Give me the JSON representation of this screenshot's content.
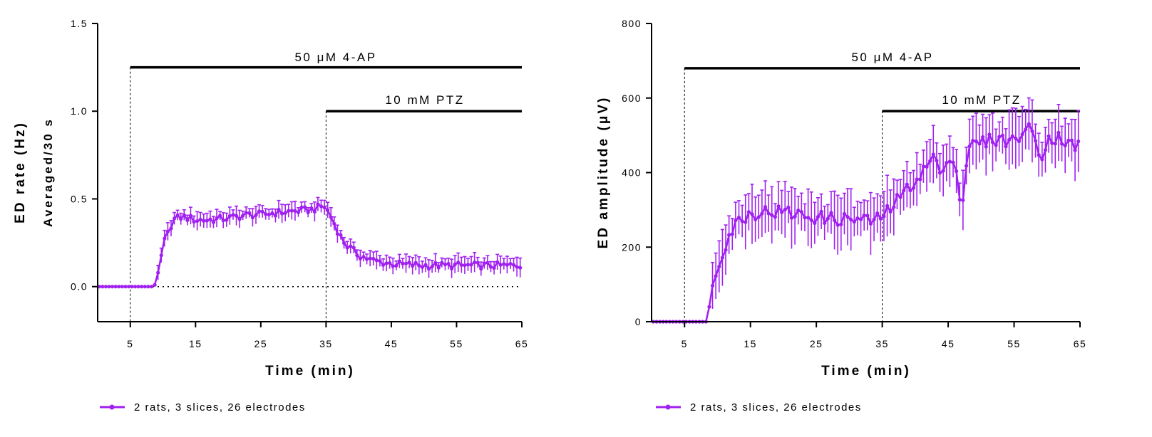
{
  "legend_label": "2 rats, 3 slices, 26 electrodes",
  "colors": {
    "series": "#A020F0",
    "axis": "#000000"
  },
  "chart_data": [
    {
      "type": "line",
      "title": "",
      "xlabel": "Time (min)",
      "ylabel": "ED rate (Hz)",
      "ylabel2": "Averaged/30 s",
      "xlim": [
        0,
        65
      ],
      "ylim": [
        -0.2,
        1.5
      ],
      "xticks": [
        5,
        15,
        25,
        35,
        45,
        55,
        65
      ],
      "xtick_labels": [
        "5",
        "15",
        "25",
        "35",
        "45",
        "55",
        "65"
      ],
      "yticks": [
        0.0,
        0.5,
        1.0,
        1.5
      ],
      "ytick_labels": [
        "0.0",
        "0.5",
        "1.0",
        "1.5"
      ],
      "baseline": 0,
      "treatments": [
        {
          "label": "50 μM 4-AP",
          "start": 5,
          "end": 65,
          "y": 1.25
        },
        {
          "label": "10 mM PTZ",
          "start": 35,
          "end": 65,
          "y": 1.0
        }
      ],
      "series": [
        {
          "name": "2 rats, 3 slices, 26 electrodes",
          "anchors": [
            [
              0,
              0
            ],
            [
              8.5,
              0
            ],
            [
              9,
              0.02
            ],
            [
              9.5,
              0.1
            ],
            [
              10,
              0.24
            ],
            [
              11,
              0.32
            ],
            [
              11.5,
              0.38
            ],
            [
              13,
              0.4
            ],
            [
              15,
              0.38
            ],
            [
              17,
              0.38
            ],
            [
              20,
              0.39
            ],
            [
              23,
              0.41
            ],
            [
              25,
              0.41
            ],
            [
              27,
              0.42
            ],
            [
              30,
              0.43
            ],
            [
              33,
              0.44
            ],
            [
              34.5,
              0.46
            ],
            [
              35,
              0.45
            ],
            [
              36,
              0.38
            ],
            [
              37,
              0.3
            ],
            [
              38,
              0.24
            ],
            [
              40,
              0.18
            ],
            [
              42,
              0.15
            ],
            [
              45,
              0.13
            ],
            [
              50,
              0.12
            ],
            [
              55,
              0.12
            ],
            [
              60,
              0.12
            ],
            [
              65,
              0.12
            ]
          ],
          "step": 0.5,
          "err_start": 9,
          "err": 0.04
        }
      ]
    },
    {
      "type": "line",
      "title": "",
      "xlabel": "Time (min)",
      "ylabel": "ED amplitude (μV)",
      "xlim": [
        0,
        65
      ],
      "ylim": [
        0,
        800
      ],
      "xticks": [
        5,
        15,
        25,
        35,
        45,
        55,
        65
      ],
      "xtick_labels": [
        "5",
        "15",
        "25",
        "35",
        "45",
        "55",
        "65"
      ],
      "yticks": [
        0,
        200,
        400,
        600,
        800
      ],
      "ytick_labels": [
        "0",
        "200",
        "400",
        "600",
        "800"
      ],
      "treatments": [
        {
          "label": "50 μM 4-AP",
          "start": 5,
          "end": 65,
          "y": 680
        },
        {
          "label": "10 mM PTZ",
          "start": 35,
          "end": 65,
          "y": 565
        }
      ],
      "series": [
        {
          "name": "2 rats, 3 slices, 26 electrodes",
          "anchors": [
            [
              0,
              0
            ],
            [
              8.5,
              0
            ],
            [
              9,
              80
            ],
            [
              10,
              150
            ],
            [
              11,
              200
            ],
            [
              12,
              240
            ],
            [
              13,
              270
            ],
            [
              15,
              290
            ],
            [
              17,
              295
            ],
            [
              20,
              295
            ],
            [
              23,
              285
            ],
            [
              25,
              280
            ],
            [
              28,
              275
            ],
            [
              31,
              275
            ],
            [
              34,
              270
            ],
            [
              35,
              285
            ],
            [
              36,
              300
            ],
            [
              38,
              340
            ],
            [
              40,
              380
            ],
            [
              42,
              420
            ],
            [
              43,
              455
            ],
            [
              44,
              370
            ],
            [
              45,
              450
            ],
            [
              46,
              440
            ],
            [
              47,
              290
            ],
            [
              48,
              470
            ],
            [
              50,
              480
            ],
            [
              52,
              490
            ],
            [
              55,
              485
            ],
            [
              57,
              520
            ],
            [
              58,
              500
            ],
            [
              59,
              440
            ],
            [
              60,
              490
            ],
            [
              62,
              495
            ],
            [
              64,
              470
            ],
            [
              65,
              475
            ]
          ],
          "step": 0.5,
          "err_start": 9,
          "err": 60
        }
      ]
    }
  ]
}
